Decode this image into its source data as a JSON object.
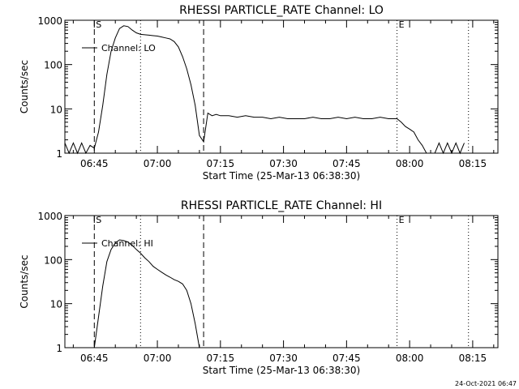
{
  "footer": {
    "timestamp": "24-Oct-2021 06:47"
  },
  "colors": {
    "background": "#ffffff",
    "foreground": "#000000"
  },
  "chart_data": [
    {
      "type": "line",
      "title": "RHESSI PARTICLE_RATE Channel: LO",
      "xlabel": "Start Time (25-Mar-13 06:38:30)",
      "ylabel": "Counts/sec",
      "y_scale": "log",
      "ylim": [
        1,
        1000
      ],
      "xlim": [
        "06:38",
        "08:21"
      ],
      "y_ticks": [
        "1",
        "10",
        "100",
        "1000"
      ],
      "x_ticks": [
        "06:45",
        "07:00",
        "07:15",
        "07:30",
        "07:45",
        "08:00",
        "08:15"
      ],
      "grid": false,
      "legend": {
        "position": "top-left",
        "entries": [
          "Channel: LO"
        ]
      },
      "annotations": [
        {
          "text": "S",
          "time": "06:45"
        },
        {
          "text": "E",
          "time": "07:57"
        }
      ],
      "vlines_dashed": [
        "06:45",
        "07:11"
      ],
      "vlines_dotted": [
        "06:56",
        "07:57",
        "08:14"
      ],
      "series": [
        {
          "name": "Channel: LO",
          "x": [
            "06:38",
            "06:39",
            "06:40",
            "06:41",
            "06:42",
            "06:43",
            "06:44",
            "06:45",
            "06:46",
            "06:47",
            "06:48",
            "06:49",
            "06:50",
            "06:51",
            "06:52",
            "06:53",
            "06:54",
            "06:55",
            "06:56",
            "06:57",
            "06:58",
            "06:59",
            "07:00",
            "07:01",
            "07:02",
            "07:03",
            "07:04",
            "07:05",
            "07:06",
            "07:07",
            "07:08",
            "07:09",
            "07:10",
            "07:11",
            "07:12",
            "07:13",
            "07:14",
            "07:15",
            "07:17",
            "07:19",
            "07:21",
            "07:23",
            "07:25",
            "07:27",
            "07:29",
            "07:31",
            "07:33",
            "07:35",
            "07:37",
            "07:39",
            "07:41",
            "07:43",
            "07:45",
            "07:47",
            "07:49",
            "07:51",
            "07:53",
            "07:55",
            "07:57",
            "07:58",
            "07:59",
            "08:00",
            "08:01",
            "08:02",
            "08:03",
            "08:04",
            "08:05",
            "08:06",
            "08:07",
            "08:08",
            "08:09",
            "08:10",
            "08:11",
            "08:12",
            "08:13"
          ],
          "y": [
            1.7,
            1,
            1.7,
            1,
            1.7,
            1,
            1.5,
            1.3,
            3,
            12,
            60,
            200,
            400,
            650,
            750,
            720,
            600,
            520,
            480,
            470,
            460,
            450,
            440,
            420,
            400,
            380,
            330,
            250,
            150,
            80,
            35,
            12,
            2.5,
            1.8,
            8,
            7,
            7.5,
            7,
            7,
            6.5,
            7,
            6.5,
            6.5,
            6,
            6.5,
            6,
            6,
            6,
            6.5,
            6,
            6,
            6.5,
            6,
            6.5,
            6,
            6,
            6.5,
            6,
            6,
            5,
            4,
            3.5,
            3,
            2,
            1.5,
            1,
            1,
            1,
            1.7,
            1,
            1.7,
            1,
            1.7,
            1,
            1.7
          ]
        }
      ]
    },
    {
      "type": "line",
      "title": "RHESSI PARTICLE_RATE Channel: HI",
      "xlabel": "Start Time (25-Mar-13 06:38:30)",
      "ylabel": "Counts/sec",
      "y_scale": "log",
      "ylim": [
        1,
        1000
      ],
      "xlim": [
        "06:38",
        "08:21"
      ],
      "y_ticks": [
        "1",
        "10",
        "100",
        "1000"
      ],
      "x_ticks": [
        "06:45",
        "07:00",
        "07:15",
        "07:30",
        "07:45",
        "08:00",
        "08:15"
      ],
      "grid": false,
      "legend": {
        "position": "top-left",
        "entries": [
          "Channel: HI"
        ]
      },
      "annotations": [
        {
          "text": "S",
          "time": "06:45"
        },
        {
          "text": "E",
          "time": "07:57"
        }
      ],
      "vlines_dashed": [
        "06:45",
        "07:11"
      ],
      "vlines_dotted": [
        "06:56",
        "07:57",
        "08:14"
      ],
      "series": [
        {
          "name": "Channel: HI",
          "x": [
            "06:45",
            "06:46",
            "06:47",
            "06:48",
            "06:49",
            "06:50",
            "06:51",
            "06:52",
            "06:53",
            "06:54",
            "06:55",
            "06:56",
            "06:57",
            "06:58",
            "06:59",
            "07:00",
            "07:01",
            "07:02",
            "07:03",
            "07:04",
            "07:05",
            "07:06",
            "07:07",
            "07:08",
            "07:09",
            "07:10"
          ],
          "y": [
            1,
            5,
            25,
            90,
            170,
            240,
            280,
            270,
            250,
            210,
            170,
            140,
            110,
            90,
            70,
            60,
            52,
            45,
            40,
            35,
            32,
            28,
            20,
            10,
            3.5,
            1
          ]
        }
      ]
    }
  ]
}
